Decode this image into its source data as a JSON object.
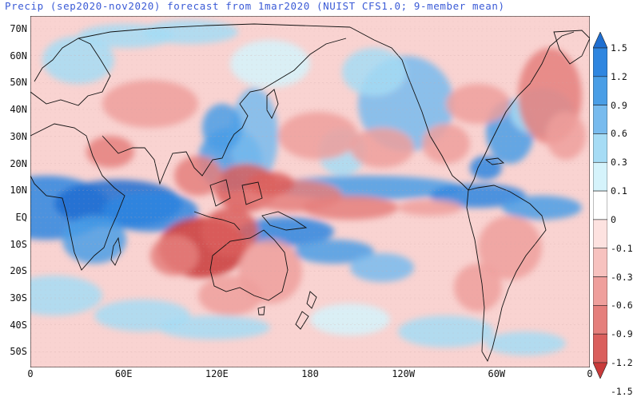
{
  "title": "Precip (sep2020-nov2020) forecast from 1mar2020 (NUIST CFS1.0; 9-member mean)",
  "lat_labels": [
    "70N",
    "60N",
    "50N",
    "40N",
    "30N",
    "20N",
    "10N",
    "EQ",
    "10S",
    "20S",
    "30S",
    "40S",
    "50S"
  ],
  "lon_labels": [
    "0",
    "60E",
    "120E",
    "180",
    "120W",
    "60W",
    "0"
  ],
  "colorbar": {
    "labels": [
      "1.5",
      "1.2",
      "0.9",
      "0.6",
      "0.3",
      "0.1",
      "0",
      "-0.1",
      "-0.3",
      "-0.6",
      "-0.9",
      "-1.2",
      "-1.5"
    ],
    "colors": [
      "#1f6fd1",
      "#2f86e0",
      "#4a9ee6",
      "#78bbee",
      "#a6dcf5",
      "#d5f3fb",
      "#ffffff",
      "#fde2e0",
      "#f7c2bf",
      "#ef9f9c",
      "#e57f7c",
      "#da5f5d",
      "#c93a3a"
    ]
  },
  "colors": {
    "coast": "#111111",
    "title": "#3b5bd6",
    "wet": "#2f86e0",
    "dry": "#e05a58"
  }
}
